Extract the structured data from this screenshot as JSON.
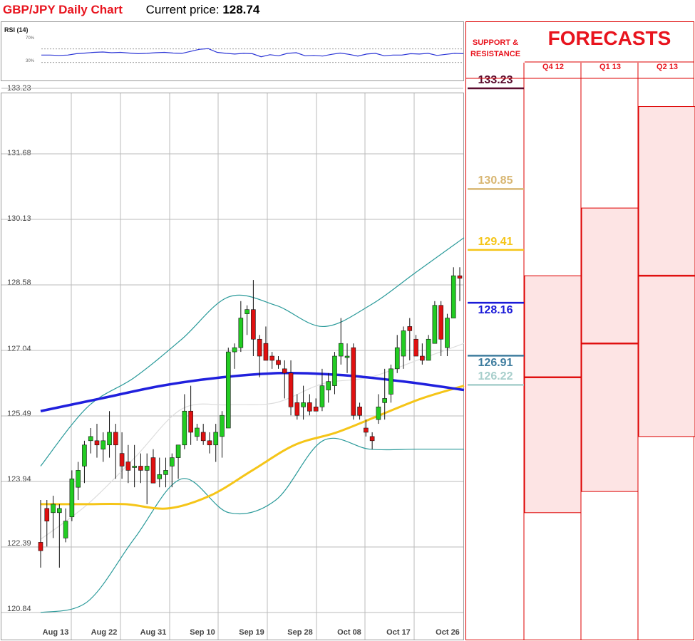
{
  "header": {
    "title": "GBP/JPY Daily Chart",
    "price_label": "Current price:",
    "price_value": "128.74"
  },
  "rsi": {
    "label": "RSI (14)",
    "ticks": [
      "70%",
      "30%"
    ],
    "levels": [
      70,
      30
    ]
  },
  "panel": {
    "sr_title_1": "SUPPORT &",
    "sr_title_2": "RESISTANCE",
    "forecast_title": "FORECASTS"
  },
  "colors": {
    "bull": "#22cc22",
    "bear": "#e01010",
    "ma200": "#2020dd",
    "ma100": "#f5c518",
    "bollinger": "#2a9a9a",
    "forecast_band": "#fde4e4"
  },
  "chart_data": {
    "type": "candlestick",
    "title": "GBP/JPY Daily Chart",
    "ylim": [
      120.84,
      133.23
    ],
    "y_ticks": [
      "133.23",
      "131.68",
      "130.13",
      "128.58",
      "127.04",
      "125.49",
      "123.94",
      "122.39",
      "120.84"
    ],
    "x_ticks": [
      "Aug 13",
      "Aug 22",
      "Aug 31",
      "Sep 10",
      "Sep 19",
      "Sep 28",
      "Oct 08",
      "Oct 17",
      "Oct 26"
    ],
    "candles": [
      [
        122.5,
        123.5,
        121.9,
        122.3
      ],
      [
        123.3,
        123.5,
        122.4,
        123.0
      ],
      [
        123.2,
        123.6,
        122.6,
        123.4
      ],
      [
        123.2,
        123.4,
        121.9,
        123.3
      ],
      [
        122.6,
        123.3,
        122.5,
        123.0
      ],
      [
        123.1,
        124.2,
        123.0,
        124.0
      ],
      [
        123.8,
        124.4,
        123.5,
        124.2
      ],
      [
        124.3,
        124.9,
        123.9,
        124.8
      ],
      [
        124.9,
        125.2,
        124.6,
        125.0
      ],
      [
        124.9,
        125.3,
        124.5,
        124.8
      ],
      [
        124.7,
        125.1,
        124.4,
        124.9
      ],
      [
        124.8,
        125.6,
        124.5,
        125.1
      ],
      [
        125.1,
        125.3,
        124.0,
        124.8
      ],
      [
        124.6,
        125.1,
        124.0,
        124.3
      ],
      [
        124.4,
        124.8,
        123.9,
        124.2
      ],
      [
        124.3,
        124.8,
        123.8,
        124.3
      ],
      [
        124.3,
        124.6,
        123.9,
        124.2
      ],
      [
        124.2,
        124.6,
        123.4,
        124.3
      ],
      [
        124.5,
        124.7,
        123.9,
        123.9
      ],
      [
        124.0,
        124.5,
        123.8,
        124.1
      ],
      [
        124.1,
        124.5,
        123.8,
        124.2
      ],
      [
        124.3,
        124.6,
        123.8,
        124.5
      ],
      [
        124.5,
        124.8,
        124.0,
        124.8
      ],
      [
        124.8,
        126.0,
        124.7,
        125.6
      ],
      [
        125.6,
        126.2,
        124.8,
        125.1
      ],
      [
        125.0,
        125.3,
        124.9,
        125.2
      ],
      [
        125.1,
        125.3,
        124.8,
        124.9
      ],
      [
        124.9,
        125.1,
        124.6,
        124.8
      ],
      [
        124.8,
        125.3,
        124.4,
        125.1
      ],
      [
        125.0,
        125.6,
        124.5,
        125.5
      ],
      [
        125.2,
        127.1,
        125.2,
        127.0
      ],
      [
        127.0,
        127.2,
        126.6,
        127.1
      ],
      [
        127.1,
        128.2,
        127.0,
        127.8
      ],
      [
        127.9,
        128.1,
        127.4,
        128.0
      ],
      [
        128.0,
        128.7,
        126.9,
        127.3
      ],
      [
        127.3,
        127.4,
        126.4,
        126.9
      ],
      [
        127.2,
        127.6,
        126.8,
        126.8
      ],
      [
        126.9,
        127.0,
        126.6,
        126.8
      ],
      [
        126.8,
        126.9,
        126.6,
        126.7
      ],
      [
        126.6,
        126.8,
        125.9,
        126.5
      ],
      [
        126.5,
        126.8,
        125.5,
        125.7
      ],
      [
        125.8,
        126.0,
        125.4,
        125.5
      ],
      [
        125.7,
        126.2,
        125.4,
        125.8
      ],
      [
        125.8,
        126.0,
        125.5,
        125.6
      ],
      [
        125.7,
        125.9,
        125.6,
        125.6
      ],
      [
        125.7,
        126.6,
        125.6,
        126.2
      ],
      [
        126.1,
        126.5,
        125.8,
        126.3
      ],
      [
        126.2,
        127.0,
        126.0,
        126.9
      ],
      [
        126.9,
        127.8,
        126.7,
        127.2
      ],
      [
        126.9,
        127.2,
        126.5,
        126.9
      ],
      [
        127.1,
        127.2,
        125.4,
        125.5
      ],
      [
        125.7,
        125.8,
        125.4,
        125.5
      ],
      [
        125.2,
        125.4,
        125.0,
        125.1
      ],
      [
        125.0,
        125.1,
        124.7,
        124.9
      ],
      [
        125.4,
        126.0,
        125.3,
        125.7
      ],
      [
        125.8,
        126.6,
        125.4,
        125.9
      ],
      [
        126.0,
        126.7,
        125.8,
        126.6
      ],
      [
        126.6,
        127.4,
        126.5,
        127.1
      ],
      [
        126.9,
        127.6,
        126.6,
        127.5
      ],
      [
        127.6,
        127.8,
        126.8,
        127.5
      ],
      [
        127.3,
        127.4,
        126.9,
        126.9
      ],
      [
        126.9,
        127.2,
        126.7,
        126.8
      ],
      [
        126.8,
        127.4,
        126.8,
        127.3
      ],
      [
        127.2,
        128.2,
        127.2,
        128.1
      ],
      [
        128.1,
        128.2,
        126.9,
        127.3
      ],
      [
        127.1,
        127.9,
        126.9,
        127.8
      ],
      [
        127.8,
        129.0,
        127.8,
        128.8
      ],
      [
        128.8,
        129.0,
        128.2,
        128.74
      ]
    ],
    "ma200": [
      125.6,
      125.9,
      126.2,
      126.4,
      126.5,
      126.45,
      126.3,
      126.1
    ],
    "ma100": [
      123.4,
      123.4,
      123.4,
      123.3,
      123.6,
      124.2,
      124.8,
      125.1,
      125.5,
      125.9,
      126.2
    ],
    "bollinger_upper": [
      124.3,
      125.7,
      126.4,
      127.3,
      128.3,
      128.1,
      127.6,
      128.1,
      128.9,
      129.7
    ],
    "bollinger_lower": [
      120.84,
      121.1,
      122.6,
      124.0,
      123.2,
      123.5,
      124.9,
      124.7,
      124.7,
      124.7
    ],
    "support_resistance": [
      {
        "label": "133.23",
        "value": 133.23,
        "color": "#5a0c2e"
      },
      {
        "label": "130.85",
        "value": 130.85,
        "color": "#d8b672"
      },
      {
        "label": "129.41",
        "value": 129.41,
        "color": "#f5c518"
      },
      {
        "label": "128.16",
        "value": 128.16,
        "color": "#1a1ad8"
      },
      {
        "label": "126.91",
        "value": 126.91,
        "color": "#3d7c9e"
      },
      {
        "label": "126.22",
        "value": 126.22,
        "color": "#a8cfcc"
      }
    ],
    "forecasts": [
      {
        "quarter": "Q4 12",
        "high": "128.8",
        "mid": "126.4",
        "low": "123.2",
        "high_v": 128.8,
        "mid_v": 126.4,
        "low_v": 123.2
      },
      {
        "quarter": "Q1 13",
        "high": "130.4",
        "mid": "127.2",
        "low": "123.7",
        "high_v": 130.4,
        "mid_v": 127.2,
        "low_v": 123.7
      },
      {
        "quarter": "Q2 13",
        "high": "132.8",
        "mid": "128.8",
        "low": "125",
        "high_v": 132.8,
        "mid_v": 128.8,
        "low_v": 125.0
      }
    ]
  }
}
